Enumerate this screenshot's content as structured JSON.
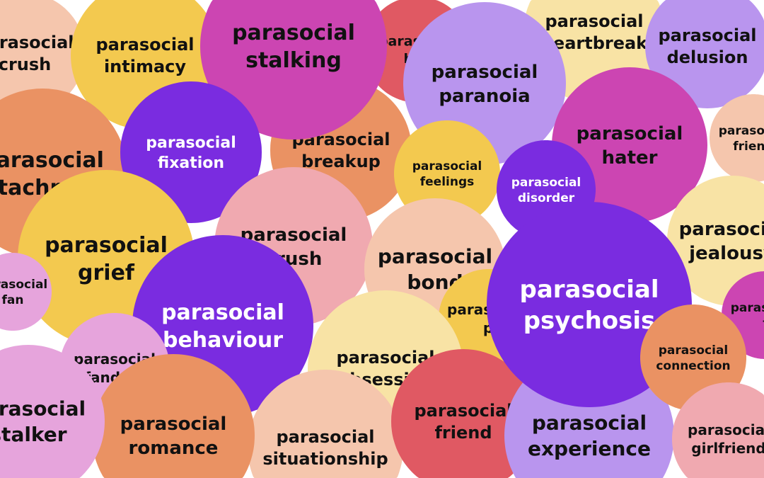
{
  "colors": {
    "peach": "#f5c6ad",
    "yellow": "#f3c94f",
    "orange": "#ea9263",
    "magenta": "#cc45b2",
    "purple": "#7a2ce0",
    "lavender": "#b995ee",
    "rose": "#f0a9b0",
    "lilac": "#e6a4dc",
    "red": "#e05963",
    "lightyellow": "#f8e3a5"
  },
  "bubbles": [
    {
      "lines": [
        "parasocial",
        "crush"
      ],
      "color": "peach"
    },
    {
      "lines": [
        "parasocial",
        "intimacy"
      ],
      "color": "yellow"
    },
    {
      "lines": [
        "parasocial",
        "attachment"
      ],
      "color": "orange"
    },
    {
      "lines": [
        "parasocial",
        "heartbreak"
      ],
      "color": "lightyellow"
    },
    {
      "lines": [
        "parasocial",
        "delusion"
      ],
      "color": "lavender"
    },
    {
      "lines": [
        "parasocial",
        "boy"
      ],
      "color": "red"
    },
    {
      "lines": [
        "parasocial",
        "breakup"
      ],
      "color": "orange"
    },
    {
      "lines": [
        "parasocial",
        "stalking"
      ],
      "color": "magenta"
    },
    {
      "lines": [
        "parasocial",
        "fixation"
      ],
      "color": "purple"
    },
    {
      "lines": [
        "parasocial",
        "paranoia"
      ],
      "color": "lavender"
    },
    {
      "lines": [
        "parasocial",
        "feelings"
      ],
      "color": "yellow"
    },
    {
      "lines": [
        "parasocial",
        "friend"
      ],
      "color": "peach"
    },
    {
      "lines": [
        "parasocial",
        "hater"
      ],
      "color": "magenta"
    },
    {
      "lines": [
        "parasocial",
        "disorder"
      ],
      "color": "purple"
    },
    {
      "lines": [
        "parasocial",
        "jealousy"
      ],
      "color": "lightyellow"
    },
    {
      "lines": [
        "parasocial",
        "grief"
      ],
      "color": "yellow"
    },
    {
      "lines": [
        "parasocial",
        "crush"
      ],
      "color": "rose"
    },
    {
      "lines": [
        "parasocial",
        "bond"
      ],
      "color": "peach"
    },
    {
      "lines": [
        "parasocial",
        "p"
      ],
      "color": "yellow"
    },
    {
      "lines": [
        "parasocial",
        "fan"
      ],
      "color": "lilac"
    },
    {
      "lines": [
        "parasocial",
        "behaviour"
      ],
      "color": "purple"
    },
    {
      "lines": [
        "parasocial",
        "fandom"
      ],
      "color": "lilac"
    },
    {
      "lines": [
        "parasocial",
        "obsession"
      ],
      "color": "lightyellow"
    },
    {
      "lines": [
        "parasocial",
        "situationship"
      ],
      "color": "peach"
    },
    {
      "lines": [
        "parasocial",
        "romance"
      ],
      "color": "orange"
    },
    {
      "lines": [
        "parasocial",
        "stalker"
      ],
      "color": "lilac"
    },
    {
      "lines": [
        "parasocial",
        "friend"
      ],
      "color": "red"
    },
    {
      "lines": [
        "parasocial",
        "experience"
      ],
      "color": "lavender"
    },
    {
      "lines": [
        "parasocial",
        "psychosis"
      ],
      "color": "purple"
    },
    {
      "lines": [
        "parasocial",
        "f"
      ],
      "color": "magenta"
    },
    {
      "lines": [
        "parasocial",
        "connection"
      ],
      "color": "orange"
    },
    {
      "lines": [
        "parasocial",
        "girlfriend"
      ],
      "color": "rose"
    }
  ]
}
